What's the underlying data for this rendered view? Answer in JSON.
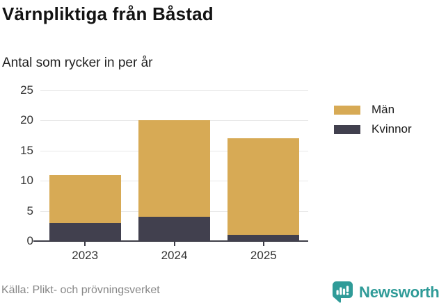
{
  "header": {
    "title": "Värnpliktiga från Båstad",
    "subtitle": "Antal som rycker in per år"
  },
  "chart_data": {
    "type": "bar",
    "stacked": true,
    "title": "Värnpliktiga från Båstad",
    "subtitle": "Antal som rycker in per år",
    "categories": [
      "2023",
      "2024",
      "2025"
    ],
    "series": [
      {
        "name": "Män",
        "color": "#d7aa55",
        "values": [
          8,
          16,
          16
        ]
      },
      {
        "name": "Kvinnor",
        "color": "#41404e",
        "values": [
          3,
          4,
          1
        ]
      }
    ],
    "stack_note": "series listed top-to-bottom; Kvinnor is bottom segment",
    "totals": [
      11,
      20,
      17
    ],
    "ylim": [
      0,
      25
    ],
    "yticks": [
      0,
      5,
      10,
      15,
      20,
      25
    ],
    "grid": true,
    "legend_position": "right",
    "colors": {
      "gridline": "#e8e8e8",
      "axis": "#3d3d47",
      "tick_label": "#333333"
    }
  },
  "footer": {
    "source": "Källa: Plikt- och prövningsverket",
    "brand": "Newsworthy",
    "brand_color": "#2f9b98",
    "logo_icon": "bar-chart-speech-bubble-icon"
  }
}
